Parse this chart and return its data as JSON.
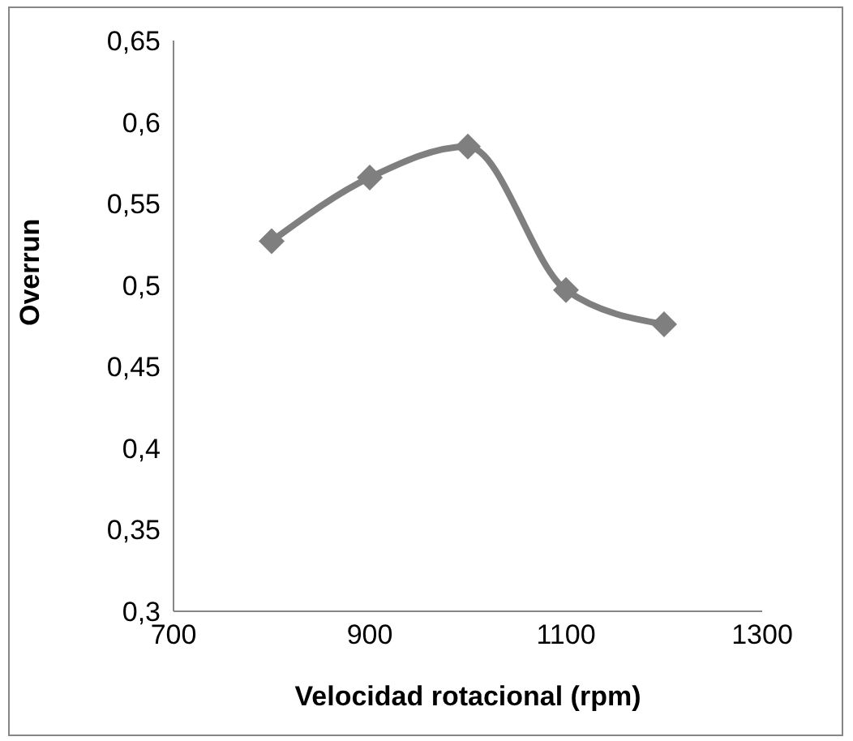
{
  "chart_data": {
    "type": "line",
    "xlabel": "Velocidad rotacional (rpm)",
    "ylabel": "Overrun",
    "x": [
      800,
      900,
      1000,
      1100,
      1200
    ],
    "series": [
      {
        "color": "#7f7f7f",
        "values": [
          0.527,
          0.566,
          0.585,
          0.497,
          0.476
        ]
      }
    ],
    "xlim": [
      700,
      1300
    ],
    "xticks": [
      700,
      900,
      1100,
      1300
    ],
    "ylim": [
      0.3,
      0.65
    ],
    "yticks": [
      {
        "value": 0.3,
        "label": "0,3"
      },
      {
        "value": 0.35,
        "label": "0,35"
      },
      {
        "value": 0.4,
        "label": "0,4"
      },
      {
        "value": 0.45,
        "label": "0,45"
      },
      {
        "value": 0.5,
        "label": "0,5"
      },
      {
        "value": 0.55,
        "label": "0,55"
      },
      {
        "value": 0.6,
        "label": "0,6"
      },
      {
        "value": 0.65,
        "label": "0,65"
      }
    ],
    "grid": false,
    "legend": false,
    "marker": "diamond",
    "line_style": "solid"
  }
}
